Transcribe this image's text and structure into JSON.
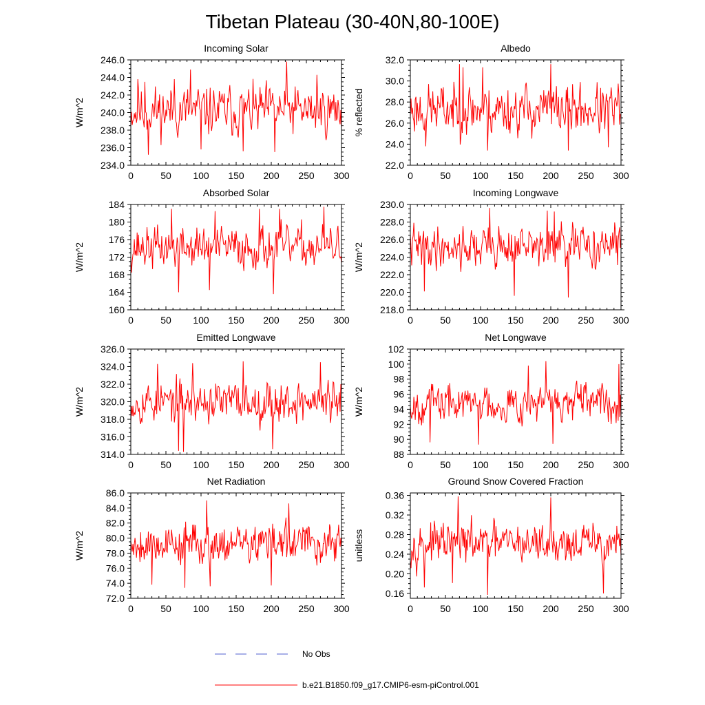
{
  "title": "Tibetan Plateau (30-40N,80-100E)",
  "legend": {
    "position": "bottom-center",
    "entries": [
      {
        "label": "No Obs",
        "color": "#4f5fcf",
        "style": "dashed"
      },
      {
        "label": "b.e21.B1850.f09_g17.CMIP6-esm-piControl.001",
        "color": "#ff0000",
        "style": "solid"
      }
    ]
  },
  "chart_data": [
    {
      "type": "line",
      "title": "Incoming Solar",
      "ylabel": "W/m^2",
      "xlim": [
        0,
        300
      ],
      "ylim": [
        234,
        246
      ],
      "xticks": [
        0,
        50,
        100,
        150,
        200,
        250,
        300
      ],
      "yticks": [
        234,
        236,
        238,
        240,
        242,
        244,
        246
      ],
      "ytick_labels": [
        "234.0",
        "236.0",
        "238.0",
        "240.0",
        "242.0",
        "244.0",
        "246.0"
      ],
      "series": [
        {
          "name": "b.e21.B1850.f09_g17.CMIP6-esm-piControl.001",
          "color": "#ff0000",
          "mean": 240.2,
          "amp": 1.9,
          "min": 235.2,
          "max": 245.8,
          "seed": 11,
          "spikes": [
            [
              10,
              243.8
            ],
            [
              20,
              243.5
            ],
            [
              25,
              235.2
            ],
            [
              62,
              243.8
            ],
            [
              85,
              244.9
            ],
            [
              100,
              235.8
            ],
            [
              160,
              235.6
            ],
            [
              222,
              245.8
            ],
            [
              205,
              235.5
            ],
            [
              265,
              244.3
            ]
          ]
        }
      ]
    },
    {
      "type": "line",
      "title": "Albedo",
      "ylabel": "% reflected",
      "xlim": [
        0,
        300
      ],
      "ylim": [
        22,
        32
      ],
      "xticks": [
        0,
        50,
        100,
        150,
        200,
        250,
        300
      ],
      "yticks": [
        22,
        24,
        26,
        28,
        30,
        32
      ],
      "ytick_labels": [
        "22.0",
        "24.0",
        "26.0",
        "28.0",
        "30.0",
        "32.0"
      ],
      "series": [
        {
          "name": "b.e21.B1850.f09_g17.CMIP6-esm-piControl.001",
          "color": "#ff0000",
          "mean": 27.3,
          "amp": 1.6,
          "min": 23.4,
          "max": 31.6,
          "seed": 23,
          "spikes": [
            [
              70,
              31.6
            ],
            [
              75,
              31.3
            ],
            [
              103,
              31.3
            ],
            [
              200,
              31.6
            ],
            [
              22,
              23.8
            ],
            [
              110,
              23.4
            ],
            [
              225,
              23.4
            ],
            [
              282,
              23.7
            ]
          ]
        }
      ]
    },
    {
      "type": "line",
      "title": "Absorbed Solar",
      "ylabel": "W/m^2",
      "xlim": [
        0,
        300
      ],
      "ylim": [
        160,
        184
      ],
      "xticks": [
        0,
        50,
        100,
        150,
        200,
        250,
        300
      ],
      "yticks": [
        160,
        164,
        168,
        172,
        176,
        180,
        184
      ],
      "ytick_labels": [
        "160",
        "164",
        "168",
        "172",
        "176",
        "180",
        "184"
      ],
      "series": [
        {
          "name": "b.e21.B1850.f09_g17.CMIP6-esm-piControl.001",
          "color": "#ff0000",
          "mean": 174.2,
          "amp": 3.2,
          "min": 163.6,
          "max": 183.5,
          "seed": 37,
          "spikes": [
            [
              58,
              183
            ],
            [
              120,
              182.5
            ],
            [
              183,
              183
            ],
            [
              212,
              183
            ],
            [
              275,
              183.5
            ],
            [
              68,
              164
            ],
            [
              112,
              164.5
            ],
            [
              203,
              163.6
            ]
          ]
        }
      ]
    },
    {
      "type": "line",
      "title": "Incoming Longwave",
      "ylabel": "W/m^2",
      "xlim": [
        0,
        300
      ],
      "ylim": [
        218,
        230
      ],
      "xticks": [
        0,
        50,
        100,
        150,
        200,
        250,
        300
      ],
      "yticks": [
        218,
        220,
        222,
        224,
        226,
        228,
        230
      ],
      "ytick_labels": [
        "218.0",
        "220.0",
        "222.0",
        "224.0",
        "226.0",
        "228.0",
        "230.0"
      ],
      "series": [
        {
          "name": "b.e21.B1850.f09_g17.CMIP6-esm-piControl.001",
          "color": "#ff0000",
          "mean": 225.2,
          "amp": 1.6,
          "min": 219.4,
          "max": 229.6,
          "seed": 41,
          "spikes": [
            [
              113,
              229.6
            ],
            [
              195,
              229.3
            ],
            [
              205,
              229.2
            ],
            [
              20,
              220.1
            ],
            [
              148,
              219.6
            ],
            [
              225,
              219.4
            ]
          ]
        }
      ]
    },
    {
      "type": "line",
      "title": "Emitted Longwave",
      "ylabel": "W/m^2",
      "xlim": [
        0,
        300
      ],
      "ylim": [
        314,
        326
      ],
      "xticks": [
        0,
        50,
        100,
        150,
        200,
        250,
        300
      ],
      "yticks": [
        314,
        316,
        318,
        320,
        322,
        324,
        326
      ],
      "ytick_labels": [
        "314.0",
        "316.0",
        "318.0",
        "320.0",
        "322.0",
        "324.0",
        "326.0"
      ],
      "series": [
        {
          "name": "b.e21.B1850.f09_g17.CMIP6-esm-piControl.001",
          "color": "#ff0000",
          "mean": 320.0,
          "amp": 1.6,
          "min": 314.4,
          "max": 324.6,
          "seed": 53,
          "spikes": [
            [
              38,
              324.3
            ],
            [
              88,
              324.4
            ],
            [
              160,
              324.6
            ],
            [
              270,
              324.5
            ],
            [
              68,
              314.4
            ],
            [
              75,
              314.3
            ],
            [
              202,
              314.6
            ]
          ]
        }
      ]
    },
    {
      "type": "line",
      "title": "Net Longwave",
      "ylabel": "W/m^2",
      "xlim": [
        0,
        300
      ],
      "ylim": [
        88,
        102
      ],
      "xticks": [
        0,
        50,
        100,
        150,
        200,
        250,
        300
      ],
      "yticks": [
        88,
        90,
        92,
        94,
        96,
        98,
        100,
        102
      ],
      "ytick_labels": [
        "88",
        "90",
        "92",
        "94",
        "96",
        "98",
        "100",
        "102"
      ],
      "series": [
        {
          "name": "b.e21.B1850.f09_g17.CMIP6-esm-piControl.001",
          "color": "#ff0000",
          "mean": 94.8,
          "amp": 1.7,
          "min": 89.3,
          "max": 100.4,
          "seed": 67,
          "spikes": [
            [
              168,
              99.8
            ],
            [
              193,
              100.4
            ],
            [
              297,
              100
            ],
            [
              28,
              89.6
            ],
            [
              97,
              89.3
            ],
            [
              203,
              89.4
            ]
          ]
        }
      ]
    },
    {
      "type": "line",
      "title": "Net Radiation",
      "ylabel": "W/m^2",
      "xlim": [
        0,
        300
      ],
      "ylim": [
        72,
        86
      ],
      "xticks": [
        0,
        50,
        100,
        150,
        200,
        250,
        300
      ],
      "yticks": [
        72,
        74,
        76,
        78,
        80,
        82,
        84,
        86
      ],
      "ytick_labels": [
        "72.0",
        "74.0",
        "76.0",
        "78.0",
        "80.0",
        "82.0",
        "84.0",
        "86.0"
      ],
      "series": [
        {
          "name": "b.e21.B1850.f09_g17.CMIP6-esm-piControl.001",
          "color": "#ff0000",
          "mean": 79.3,
          "amp": 1.8,
          "min": 73.4,
          "max": 85.0,
          "seed": 79,
          "spikes": [
            [
              108,
              85
            ],
            [
              225,
              84.6
            ],
            [
              30,
              73.8
            ],
            [
              77,
              73.4
            ],
            [
              113,
              73.6
            ],
            [
              200,
              73.7
            ]
          ]
        }
      ]
    },
    {
      "type": "line",
      "title": "Ground Snow Covered Fraction",
      "ylabel": "unitless",
      "xlim": [
        0,
        300
      ],
      "ylim": [
        0.15,
        0.365
      ],
      "xticks": [
        0,
        50,
        100,
        150,
        200,
        250,
        300
      ],
      "yticks": [
        0.16,
        0.2,
        0.24,
        0.28,
        0.32,
        0.36
      ],
      "ytick_labels": [
        "0.16",
        "0.20",
        "0.24",
        "0.28",
        "0.32",
        "0.36"
      ],
      "series": [
        {
          "name": "b.e21.B1850.f09_g17.CMIP6-esm-piControl.001",
          "color": "#ff0000",
          "mean": 0.262,
          "amp": 0.027,
          "min": 0.157,
          "max": 0.358,
          "seed": 97,
          "spikes": [
            [
              68,
              0.358
            ],
            [
              200,
              0.356
            ],
            [
              20,
              0.172
            ],
            [
              60,
              0.181
            ],
            [
              110,
              0.157
            ],
            [
              275,
              0.16
            ]
          ]
        }
      ]
    }
  ]
}
